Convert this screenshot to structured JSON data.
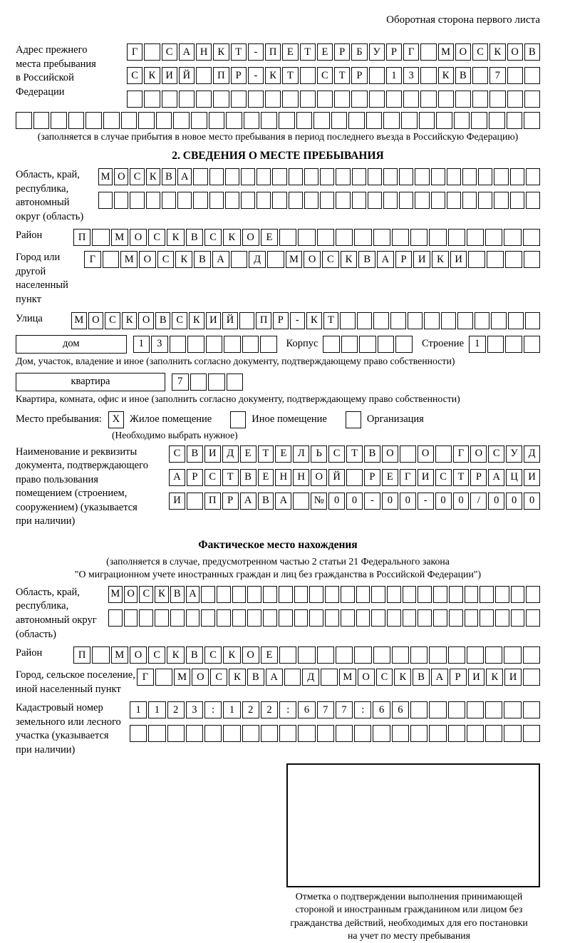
{
  "page": {
    "header_note": "Оборотная сторона первого листа"
  },
  "prev_address": {
    "label": "Адрес прежнего\nместа пребывания\nв Российской\nФедерации",
    "rows": [
      {
        "text": "Г САНКТ-ПЕТЕРБУРГ МОСКОВ",
        "cells": 24
      },
      {
        "text": "СКИЙ ПР-КТ СТР 13 КВ 7",
        "cells": 24
      },
      {
        "text": "",
        "cells": 24
      },
      {
        "text": "",
        "cells": 30
      }
    ],
    "note": "(заполняется в случае прибытия в новое место пребывания в период последнего въезда в Российскую Федерацию)"
  },
  "section2": {
    "title": "2. СВЕДЕНИЯ О МЕСТЕ ПРЕБЫВАНИЯ",
    "region": {
      "label": "Область, край,\nреспублика,\nавтономный\nокруг (область)",
      "rows": [
        {
          "text": "МОСКВА",
          "cells": 28
        },
        {
          "text": "",
          "cells": 28
        }
      ]
    },
    "district": {
      "label": "Район",
      "row": {
        "text": "П МОСКВСКОЕ",
        "cells": 25
      }
    },
    "city": {
      "label": "Город или другой\nнаселенный пункт",
      "row": {
        "text": "Г МОСКВА Д МОСКВАРИКИ",
        "cells": 25
      }
    },
    "street": {
      "label": "Улица",
      "row": {
        "text": "МОСКОВСКИЙ ПР-КТ",
        "cells": 28
      }
    },
    "house": {
      "box_label": "дом",
      "row": {
        "text": "13",
        "cells": 8
      },
      "korpus_label": "Корпус",
      "korpus_row": {
        "text": "",
        "cells": 5
      },
      "stroenie_label": "Строение",
      "stroenie_row": {
        "text": "1",
        "cells": 4
      },
      "note": "Дом, участок, владение и иное (заполнить согласно документу, подтверждающему право собственности)"
    },
    "apartment": {
      "box_label": "квартира",
      "row": {
        "text": "7",
        "cells": 4
      },
      "note": "Квартира, комната, офис и иное (заполнить согласно документу, подтверждающему право собственности)"
    },
    "stay_type": {
      "label": "Место пребывания:",
      "options": [
        {
          "mark": "X",
          "label": "Жилое помещение"
        },
        {
          "mark": "",
          "label": "Иное помещение"
        },
        {
          "mark": "",
          "label": "Организация"
        }
      ],
      "note": "(Необходимо выбрать нужное)"
    },
    "document": {
      "label": "Наименование и реквизиты\nдокумента, подтверждающего\nправо пользования\nпомещением (строением,\nсооружением) (указывается\nпри наличии)",
      "rows": [
        {
          "text": "СВИДЕТЕЛЬСТВО О ГОСУД",
          "cells": 21
        },
        {
          "text": "АРСТВЕННОЙ РЕГИСТРАЦИ",
          "cells": 21
        },
        {
          "text": "И ПРАВА №00-00-00/000",
          "cells": 21
        }
      ]
    }
  },
  "actual_location": {
    "title": "Фактическое место нахождения",
    "notes": [
      "(заполняется в случае, предусмотренном частью 2 статьи 21 Федерального закона",
      "\"О миграционном учете иностранных граждан и лиц без гражданства в Российской Федерации\")"
    ],
    "region": {
      "label": "Область, край,\nреспублика,\nавтономный округ\n(область)",
      "rows": [
        {
          "text": "МОСКВА",
          "cells": 28
        },
        {
          "text": "",
          "cells": 28
        }
      ]
    },
    "district": {
      "label": "Район",
      "row": {
        "text": "П МОСКВСКОЕ",
        "cells": 25
      }
    },
    "city": {
      "label": "Город, сельское поселение,\nиной населенный пункт",
      "row": {
        "text": "Г МОСКВА Д МОСКВАРИКИ",
        "cells": 22
      }
    },
    "cadastre": {
      "label": "Кадастровый номер\nземельного или лесного\nучастка (указывается\nпри наличии)",
      "rows": [
        {
          "text": "1123:122:677:66",
          "cells": 22
        },
        {
          "text": "",
          "cells": 22
        }
      ]
    }
  },
  "confirmation": {
    "note": "Отметка о подтверждении выполнения принимающей\nстороной и иностранным гражданином или лицом без\nгражданства действий, необходимых для его постановки\nна учет по месту пребывания"
  }
}
